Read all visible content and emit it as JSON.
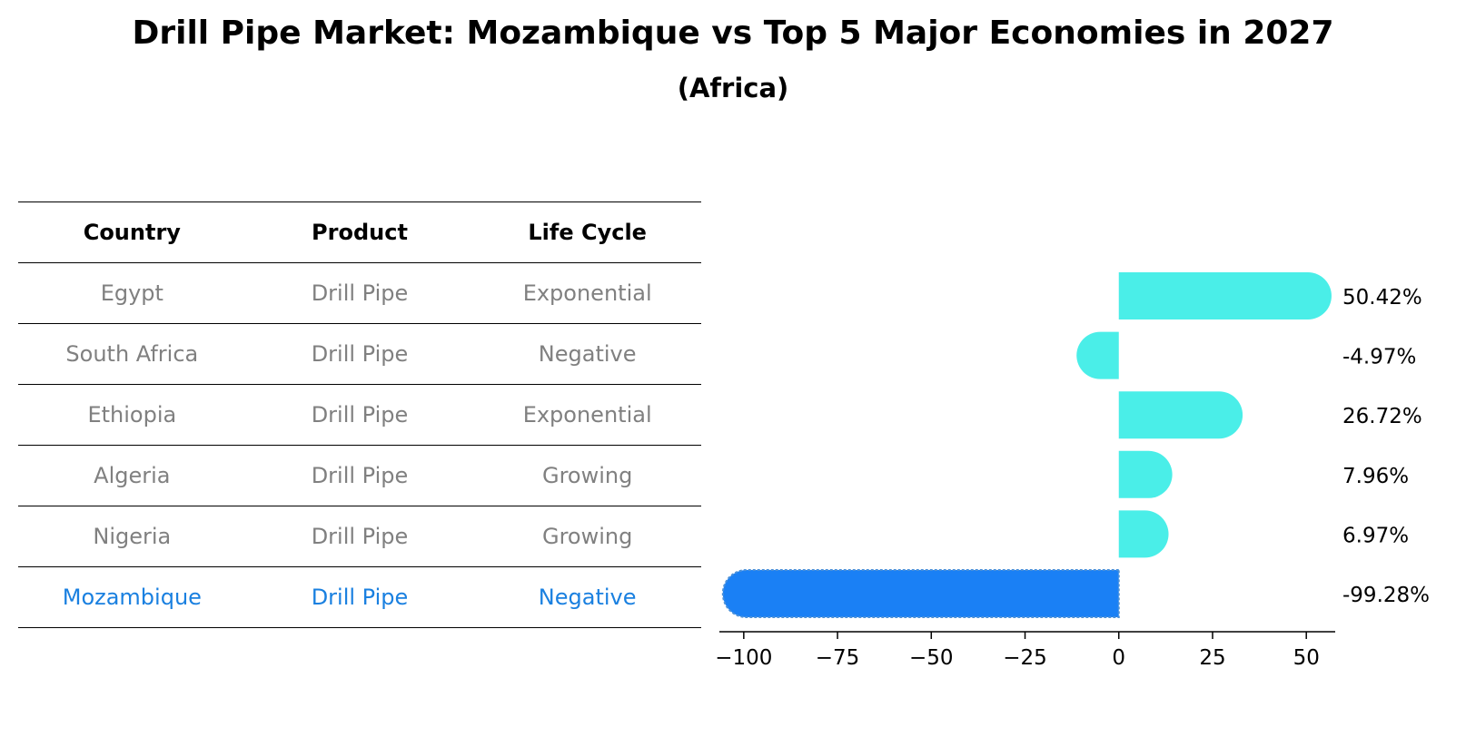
{
  "title": "Drill Pipe Market: Mozambique vs Top 5 Major Economies in 2027",
  "subtitle": "(Africa)",
  "table": {
    "headers": [
      "Country",
      "Product",
      "Life Cycle"
    ],
    "rows": [
      {
        "country": "Egypt",
        "product": "Drill Pipe",
        "life_cycle": "Exponential"
      },
      {
        "country": "South Africa",
        "product": "Drill Pipe",
        "life_cycle": "Negative"
      },
      {
        "country": "Ethiopia",
        "product": "Drill Pipe",
        "life_cycle": "Exponential"
      },
      {
        "country": "Algeria",
        "product": "Drill Pipe",
        "life_cycle": "Growing"
      },
      {
        "country": "Nigeria",
        "product": "Drill Pipe",
        "life_cycle": "Growing"
      },
      {
        "country": "Mozambique",
        "product": "Drill Pipe",
        "life_cycle": "Negative"
      }
    ]
  },
  "colors": {
    "bar": "#4aeee8",
    "highlight_bar": "#1a80f5",
    "highlight_text": "#1a80e0",
    "muted_text": "#808080"
  },
  "chart_data": {
    "type": "bar",
    "orientation": "horizontal",
    "categories": [
      "Egypt",
      "South Africa",
      "Ethiopia",
      "Algeria",
      "Nigeria",
      "Mozambique"
    ],
    "values": [
      50.42,
      -4.97,
      26.72,
      7.96,
      6.97,
      -99.28
    ],
    "value_labels": [
      "50.42%",
      "-4.97%",
      "26.72%",
      "7.96%",
      "6.97%",
      "-99.28%"
    ],
    "highlight": "Mozambique",
    "xlim": [
      -106.5,
      57.7
    ],
    "xticks": [
      -100,
      -75,
      -50,
      -25,
      0,
      25,
      50
    ],
    "xtick_labels": [
      "−100",
      "−75",
      "−50",
      "−25",
      "0",
      "25",
      "50"
    ],
    "xlabel": "",
    "ylabel": "",
    "grid": false
  }
}
